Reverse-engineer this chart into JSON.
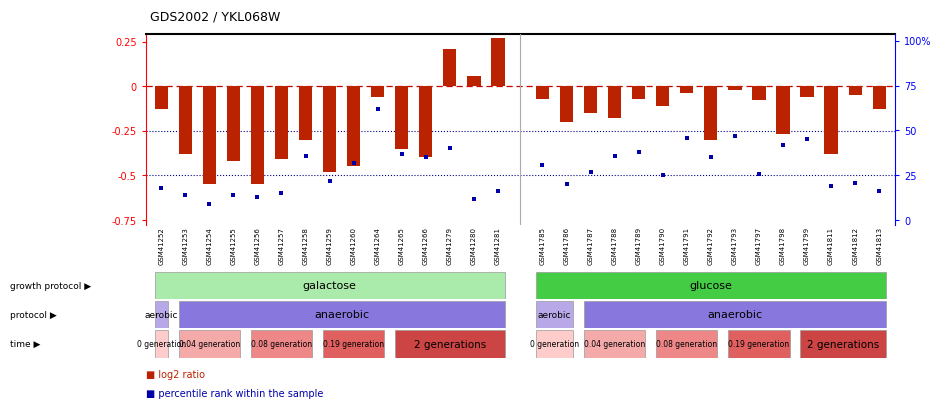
{
  "title": "GDS2002 / YKL068W",
  "samples": [
    "GSM41252",
    "GSM41253",
    "GSM41254",
    "GSM41255",
    "GSM41256",
    "GSM41257",
    "GSM41258",
    "GSM41259",
    "GSM41260",
    "GSM41264",
    "GSM41265",
    "GSM41266",
    "GSM41279",
    "GSM41280",
    "GSM41281",
    "GSM41785",
    "GSM41786",
    "GSM41787",
    "GSM41788",
    "GSM41789",
    "GSM41790",
    "GSM41791",
    "GSM41792",
    "GSM41793",
    "GSM41797",
    "GSM41798",
    "GSM41799",
    "GSM41811",
    "GSM41812",
    "GSM41813"
  ],
  "log2_ratio": [
    -0.13,
    -0.38,
    -0.55,
    -0.42,
    -0.55,
    -0.41,
    -0.3,
    -0.48,
    -0.45,
    -0.06,
    -0.35,
    -0.4,
    0.21,
    0.06,
    0.27,
    -0.07,
    -0.2,
    -0.15,
    -0.18,
    -0.07,
    -0.11,
    -0.04,
    -0.3,
    -0.02,
    -0.08,
    -0.27,
    -0.06,
    -0.38,
    -0.05,
    -0.13
  ],
  "percentile": [
    18,
    14,
    9,
    14,
    13,
    15,
    36,
    22,
    32,
    62,
    37,
    35,
    40,
    12,
    16,
    31,
    20,
    27,
    36,
    38,
    25,
    46,
    35,
    47,
    26,
    42,
    45,
    19,
    21,
    16
  ],
  "bar_color": "#bb2200",
  "dot_color": "#0000aa",
  "dashed_line_color": "#cc0000",
  "dotted_line_color": "#000088",
  "ylim_left": [
    -0.78,
    0.295
  ],
  "ylim_right": [
    -2.8,
    104.0
  ],
  "yticks_left": [
    -0.75,
    -0.5,
    -0.25,
    0.0,
    0.25
  ],
  "ytick_labels_left": [
    "-0.75",
    "-0.5",
    "-0.25",
    "0",
    "0.25"
  ],
  "yticks_right": [
    0,
    25,
    50,
    75,
    100
  ],
  "ytick_labels_right": [
    "0",
    "25",
    "50",
    "75",
    "100%"
  ],
  "galactose_color": "#aaeaaa",
  "glucose_color": "#44cc44",
  "aerobic_color": "#b8a8e8",
  "anaerobic_color": "#8878dd",
  "time_colors": [
    "#ffcccc",
    "#f5aaaa",
    "#ee8888",
    "#e06060",
    "#cc4444"
  ],
  "time_labels": [
    "0 generation",
    "0.04 generation",
    "0.08 generation",
    "0.19 generation",
    "2 generations"
  ],
  "time_group_galactose": [
    {
      "label": "0 generation",
      "start": 0,
      "end": 0
    },
    {
      "label": "0.04 generation",
      "start": 1,
      "end": 3
    },
    {
      "label": "0.08 generation",
      "start": 4,
      "end": 6
    },
    {
      "label": "0.19 generation",
      "start": 7,
      "end": 9
    },
    {
      "label": "2 generations",
      "start": 10,
      "end": 14
    }
  ],
  "time_group_glucose": [
    {
      "label": "0 generation",
      "start": 15,
      "end": 16
    },
    {
      "label": "0.04 generation",
      "start": 17,
      "end": 19
    },
    {
      "label": "0.08 generation",
      "start": 20,
      "end": 22
    },
    {
      "label": "0.19 generation",
      "start": 23,
      "end": 25
    },
    {
      "label": "2 generations",
      "start": 26,
      "end": 29
    }
  ]
}
